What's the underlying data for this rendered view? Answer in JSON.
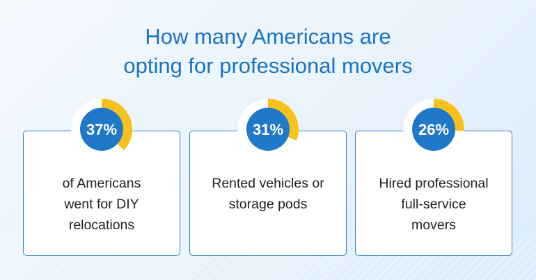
{
  "chart_data": {
    "type": "pie",
    "title": [
      "How many Americans are",
      "opting for professional movers"
    ],
    "items": [
      {
        "value": 37,
        "label": "37%",
        "text": [
          "of Americans",
          "went for DIY",
          "relocations"
        ]
      },
      {
        "value": 31,
        "label": "31%",
        "text": [
          "Rented vehicles or",
          "storage pods"
        ]
      },
      {
        "value": 26,
        "label": "26%",
        "text": [
          "Hired professional",
          "full-service",
          "movers"
        ]
      }
    ]
  },
  "colors": {
    "accent": "#1a73c2",
    "ring_fill": "#f7c21b",
    "ring_track": "#ffffff",
    "center": "#1f78c8"
  }
}
